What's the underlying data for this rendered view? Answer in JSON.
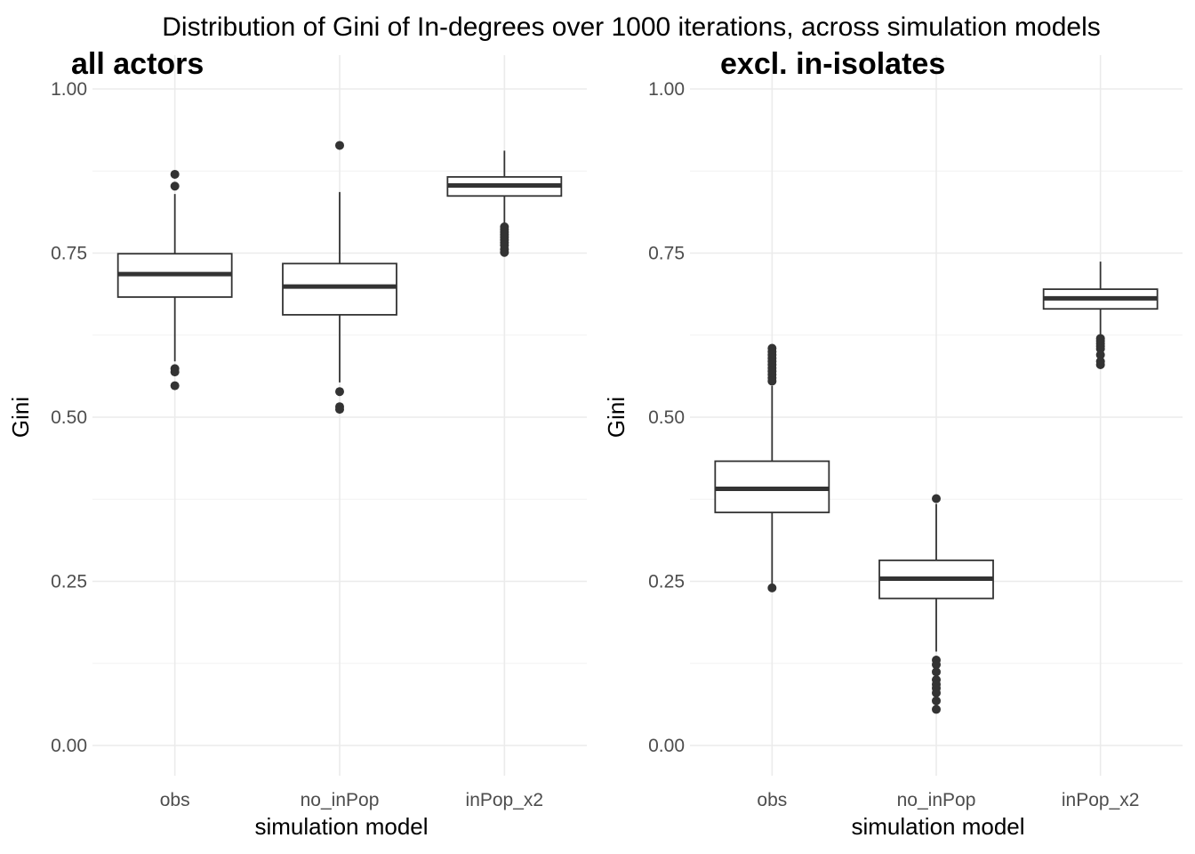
{
  "title": "Distribution of Gini of In-degrees over 1000 iterations, across simulation models",
  "chart_data": [
    {
      "type": "box",
      "panel_title": "all actors",
      "xlabel": "simulation model",
      "ylabel": "Gini",
      "ylim": [
        0,
        1
      ],
      "y_ticks": [
        "0.00",
        "0.25",
        "0.50",
        "0.75",
        "1.00"
      ],
      "y_tick_values": [
        0,
        0.25,
        0.5,
        0.75,
        1
      ],
      "categories": [
        "obs",
        "no_inPop",
        "inPop_x2"
      ],
      "boxes": [
        {
          "category": "obs",
          "whisker_low": 0.585,
          "q1": 0.683,
          "median": 0.718,
          "q3": 0.749,
          "whisker_high": 0.84,
          "outliers": [
            0.87,
            0.852,
            0.574,
            0.569,
            0.548
          ]
        },
        {
          "category": "no_inPop",
          "whisker_low": 0.553,
          "q1": 0.656,
          "median": 0.699,
          "q3": 0.734,
          "whisker_high": 0.843,
          "outliers": [
            0.914,
            0.539,
            0.516,
            0.512
          ]
        },
        {
          "category": "inPop_x2",
          "whisker_low": 0.795,
          "q1": 0.837,
          "median": 0.853,
          "q3": 0.866,
          "whisker_high": 0.906,
          "outliers": [
            0.79,
            0.786,
            0.782,
            0.778,
            0.774,
            0.77,
            0.766,
            0.762,
            0.756,
            0.751
          ]
        }
      ]
    },
    {
      "type": "box",
      "panel_title": "excl. in-isolates",
      "xlabel": "simulation model",
      "ylabel": "Gini",
      "ylim": [
        0,
        1
      ],
      "y_ticks": [
        "0.00",
        "0.25",
        "0.50",
        "0.75",
        "1.00"
      ],
      "y_tick_values": [
        0,
        0.25,
        0.5,
        0.75,
        1
      ],
      "categories": [
        "obs",
        "no_inPop",
        "inPop_x2"
      ],
      "boxes": [
        {
          "category": "obs",
          "whisker_low": 0.243,
          "q1": 0.355,
          "median": 0.391,
          "q3": 0.433,
          "whisker_high": 0.548,
          "outliers": [
            0.605,
            0.6,
            0.595,
            0.59,
            0.585,
            0.58,
            0.575,
            0.57,
            0.565,
            0.56,
            0.555,
            0.24
          ]
        },
        {
          "category": "no_inPop",
          "whisker_low": 0.143,
          "q1": 0.224,
          "median": 0.254,
          "q3": 0.282,
          "whisker_high": 0.368,
          "outliers": [
            0.376,
            0.13,
            0.123,
            0.112,
            0.1,
            0.093,
            0.087,
            0.08,
            0.068,
            0.055
          ]
        },
        {
          "category": "inPop_x2",
          "whisker_low": 0.625,
          "q1": 0.665,
          "median": 0.681,
          "q3": 0.695,
          "whisker_high": 0.737,
          "outliers": [
            0.62,
            0.616,
            0.612,
            0.608,
            0.604,
            0.595,
            0.585,
            0.58
          ]
        }
      ]
    }
  ]
}
